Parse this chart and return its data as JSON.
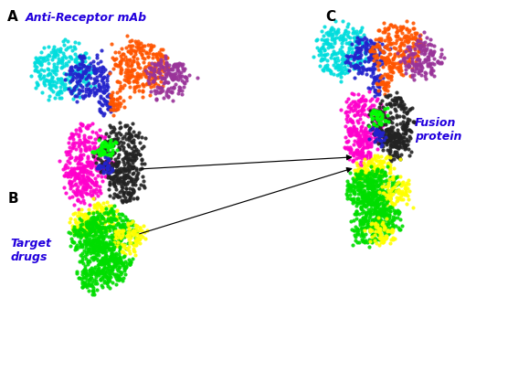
{
  "fig_width": 5.79,
  "fig_height": 4.07,
  "dpi": 100,
  "label_A": "A",
  "label_B": "B",
  "label_C": "C",
  "text_anti": "Anti-Receptor mAb",
  "text_target": "Target\ndrugs",
  "text_fusion": "Fusion\nprotein",
  "colors": {
    "cyan": "#00DDDD",
    "blue": "#2222CC",
    "orange": "#FF5500",
    "purple": "#993399",
    "magenta": "#FF00CC",
    "black": "#222222",
    "green_bright": "#00DD00",
    "yellow": "#FFFF00",
    "green_small": "#00FF00",
    "label_color": "#2200DD",
    "dark_purple": "#663399"
  },
  "seed": 42,
  "dot_size": 9,
  "dot_alpha": 0.9,
  "xlim": [
    0,
    10
  ],
  "ylim": [
    0,
    7
  ]
}
